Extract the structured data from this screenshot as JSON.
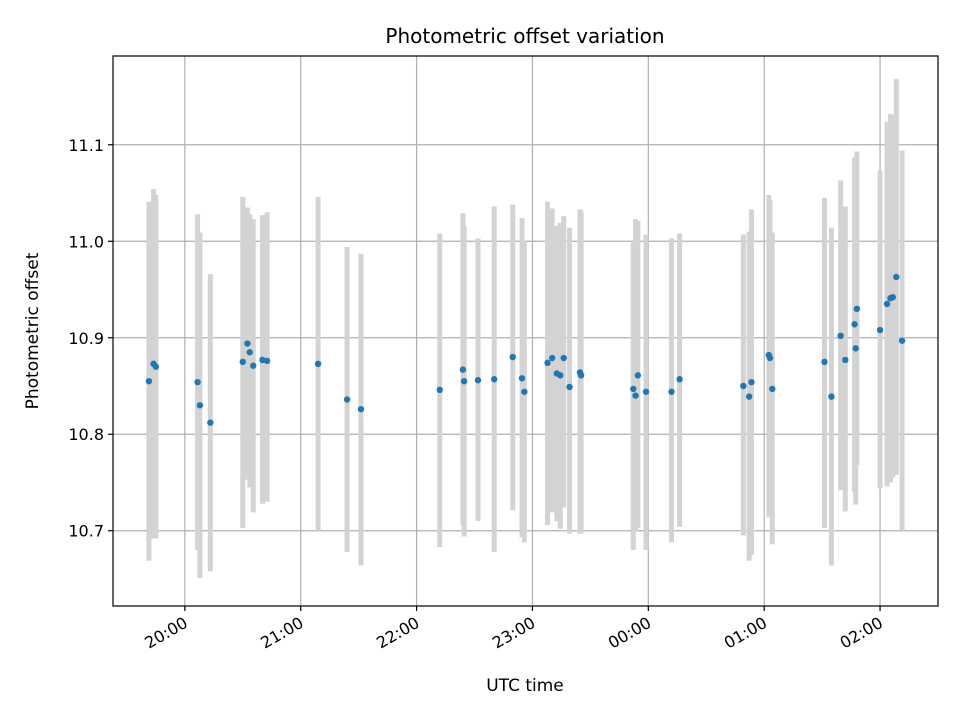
{
  "chart_data": {
    "type": "scatter",
    "title": "Photometric offset variation",
    "xlabel": "UTC time",
    "ylabel": "Photometric offset",
    "x_unit": "hours (UTC) since 00:00, negative = previous day",
    "xlim": [
      -4.62,
      2.5
    ],
    "ylim": [
      10.622,
      11.192
    ],
    "grid": true,
    "x_ticks": [
      {
        "value": -4,
        "label": "20:00"
      },
      {
        "value": -3,
        "label": "21:00"
      },
      {
        "value": -2,
        "label": "22:00"
      },
      {
        "value": -1,
        "label": "23:00"
      },
      {
        "value": 0,
        "label": "00:00"
      },
      {
        "value": 1,
        "label": "01:00"
      },
      {
        "value": 2,
        "label": "02:00"
      }
    ],
    "y_ticks": [
      {
        "value": 10.7,
        "label": "10.7"
      },
      {
        "value": 10.8,
        "label": "10.8"
      },
      {
        "value": 10.9,
        "label": "10.9"
      },
      {
        "value": 11.0,
        "label": "11.0"
      },
      {
        "value": 11.1,
        "label": "11.1"
      }
    ],
    "colors": {
      "point": "#1f77b4",
      "errorbar": "#d3d3d3",
      "grid": "#b0b0b0"
    },
    "points": [
      {
        "x": -4.31,
        "y": 10.855,
        "lo": 10.669,
        "hi": 11.041
      },
      {
        "x": -4.27,
        "y": 10.873,
        "lo": 10.692,
        "hi": 11.054
      },
      {
        "x": -4.25,
        "y": 10.87,
        "lo": 10.692,
        "hi": 11.048
      },
      {
        "x": -3.89,
        "y": 10.854,
        "lo": 10.68,
        "hi": 11.028
      },
      {
        "x": -3.87,
        "y": 10.83,
        "lo": 10.651,
        "hi": 11.009
      },
      {
        "x": -3.78,
        "y": 10.812,
        "lo": 10.658,
        "hi": 10.966
      },
      {
        "x": -3.5,
        "y": 10.875,
        "lo": 10.703,
        "hi": 11.046
      },
      {
        "x": -3.46,
        "y": 10.894,
        "lo": 10.753,
        "hi": 11.035
      },
      {
        "x": -3.44,
        "y": 10.885,
        "lo": 10.745,
        "hi": 11.028
      },
      {
        "x": -3.41,
        "y": 10.871,
        "lo": 10.719,
        "hi": 11.023
      },
      {
        "x": -3.33,
        "y": 10.877,
        "lo": 10.728,
        "hi": 11.027
      },
      {
        "x": -3.29,
        "y": 10.876,
        "lo": 10.73,
        "hi": 11.03
      },
      {
        "x": -2.85,
        "y": 10.873,
        "lo": 10.7,
        "hi": 11.046
      },
      {
        "x": -2.6,
        "y": 10.836,
        "lo": 10.678,
        "hi": 10.994
      },
      {
        "x": -2.48,
        "y": 10.826,
        "lo": 10.664,
        "hi": 10.987
      },
      {
        "x": -1.8,
        "y": 10.846,
        "lo": 10.683,
        "hi": 11.008
      },
      {
        "x": -1.6,
        "y": 10.867,
        "lo": 10.706,
        "hi": 11.029
      },
      {
        "x": -1.59,
        "y": 10.855,
        "lo": 10.694,
        "hi": 11.016
      },
      {
        "x": -1.47,
        "y": 10.856,
        "lo": 10.71,
        "hi": 11.003
      },
      {
        "x": -1.33,
        "y": 10.857,
        "lo": 10.678,
        "hi": 11.036
      },
      {
        "x": -1.17,
        "y": 10.88,
        "lo": 10.721,
        "hi": 11.038
      },
      {
        "x": -1.09,
        "y": 10.858,
        "lo": 10.693,
        "hi": 11.024
      },
      {
        "x": -1.07,
        "y": 10.844,
        "lo": 10.688,
        "hi": 11.0
      },
      {
        "x": -0.87,
        "y": 10.874,
        "lo": 10.706,
        "hi": 11.041
      },
      {
        "x": -0.83,
        "y": 10.879,
        "lo": 10.719,
        "hi": 11.034
      },
      {
        "x": -0.79,
        "y": 10.863,
        "lo": 10.71,
        "hi": 11.016
      },
      {
        "x": -0.76,
        "y": 10.861,
        "lo": 10.702,
        "hi": 11.019
      },
      {
        "x": -0.73,
        "y": 10.879,
        "lo": 10.724,
        "hi": 11.026
      },
      {
        "x": -0.68,
        "y": 10.849,
        "lo": 10.697,
        "hi": 11.014
      },
      {
        "x": -0.59,
        "y": 10.864,
        "lo": 10.697,
        "hi": 11.033
      },
      {
        "x": -0.58,
        "y": 10.861,
        "lo": 10.697,
        "hi": 11.031
      },
      {
        "x": -0.13,
        "y": 10.847,
        "lo": 10.68,
        "hi": 11.0
      },
      {
        "x": -0.11,
        "y": 10.84,
        "lo": 10.7,
        "hi": 11.023
      },
      {
        "x": -0.09,
        "y": 10.861,
        "lo": 10.703,
        "hi": 11.021
      },
      {
        "x": -0.02,
        "y": 10.844,
        "lo": 10.68,
        "hi": 11.007
      },
      {
        "x": 0.2,
        "y": 10.844,
        "lo": 10.688,
        "hi": 11.003
      },
      {
        "x": 0.27,
        "y": 10.857,
        "lo": 10.704,
        "hi": 11.008
      },
      {
        "x": 0.82,
        "y": 10.85,
        "lo": 10.695,
        "hi": 11.007
      },
      {
        "x": 0.87,
        "y": 10.839,
        "lo": 10.669,
        "hi": 11.01
      },
      {
        "x": 0.89,
        "y": 10.854,
        "lo": 10.675,
        "hi": 11.033
      },
      {
        "x": 1.04,
        "y": 10.882,
        "lo": 10.714,
        "hi": 11.048
      },
      {
        "x": 1.05,
        "y": 10.879,
        "lo": 10.715,
        "hi": 11.043
      },
      {
        "x": 1.07,
        "y": 10.847,
        "lo": 10.686,
        "hi": 11.009
      },
      {
        "x": 1.52,
        "y": 10.875,
        "lo": 10.703,
        "hi": 11.045
      },
      {
        "x": 1.58,
        "y": 10.839,
        "lo": 10.664,
        "hi": 11.014
      },
      {
        "x": 1.66,
        "y": 10.902,
        "lo": 10.742,
        "hi": 11.063
      },
      {
        "x": 1.7,
        "y": 10.877,
        "lo": 10.72,
        "hi": 11.036
      },
      {
        "x": 1.78,
        "y": 10.914,
        "lo": 10.74,
        "hi": 11.087
      },
      {
        "x": 1.79,
        "y": 10.889,
        "lo": 10.727,
        "hi": 11.051
      },
      {
        "x": 1.8,
        "y": 10.93,
        "lo": 10.768,
        "hi": 11.093
      },
      {
        "x": 2.0,
        "y": 10.908,
        "lo": 10.744,
        "hi": 11.073
      },
      {
        "x": 2.06,
        "y": 10.935,
        "lo": 10.746,
        "hi": 11.124
      },
      {
        "x": 2.09,
        "y": 10.941,
        "lo": 10.75,
        "hi": 11.132
      },
      {
        "x": 2.11,
        "y": 10.942,
        "lo": 10.755,
        "hi": 11.13
      },
      {
        "x": 2.14,
        "y": 10.963,
        "lo": 10.758,
        "hi": 11.168
      },
      {
        "x": 2.19,
        "y": 10.897,
        "lo": 10.7,
        "hi": 11.094
      }
    ]
  }
}
